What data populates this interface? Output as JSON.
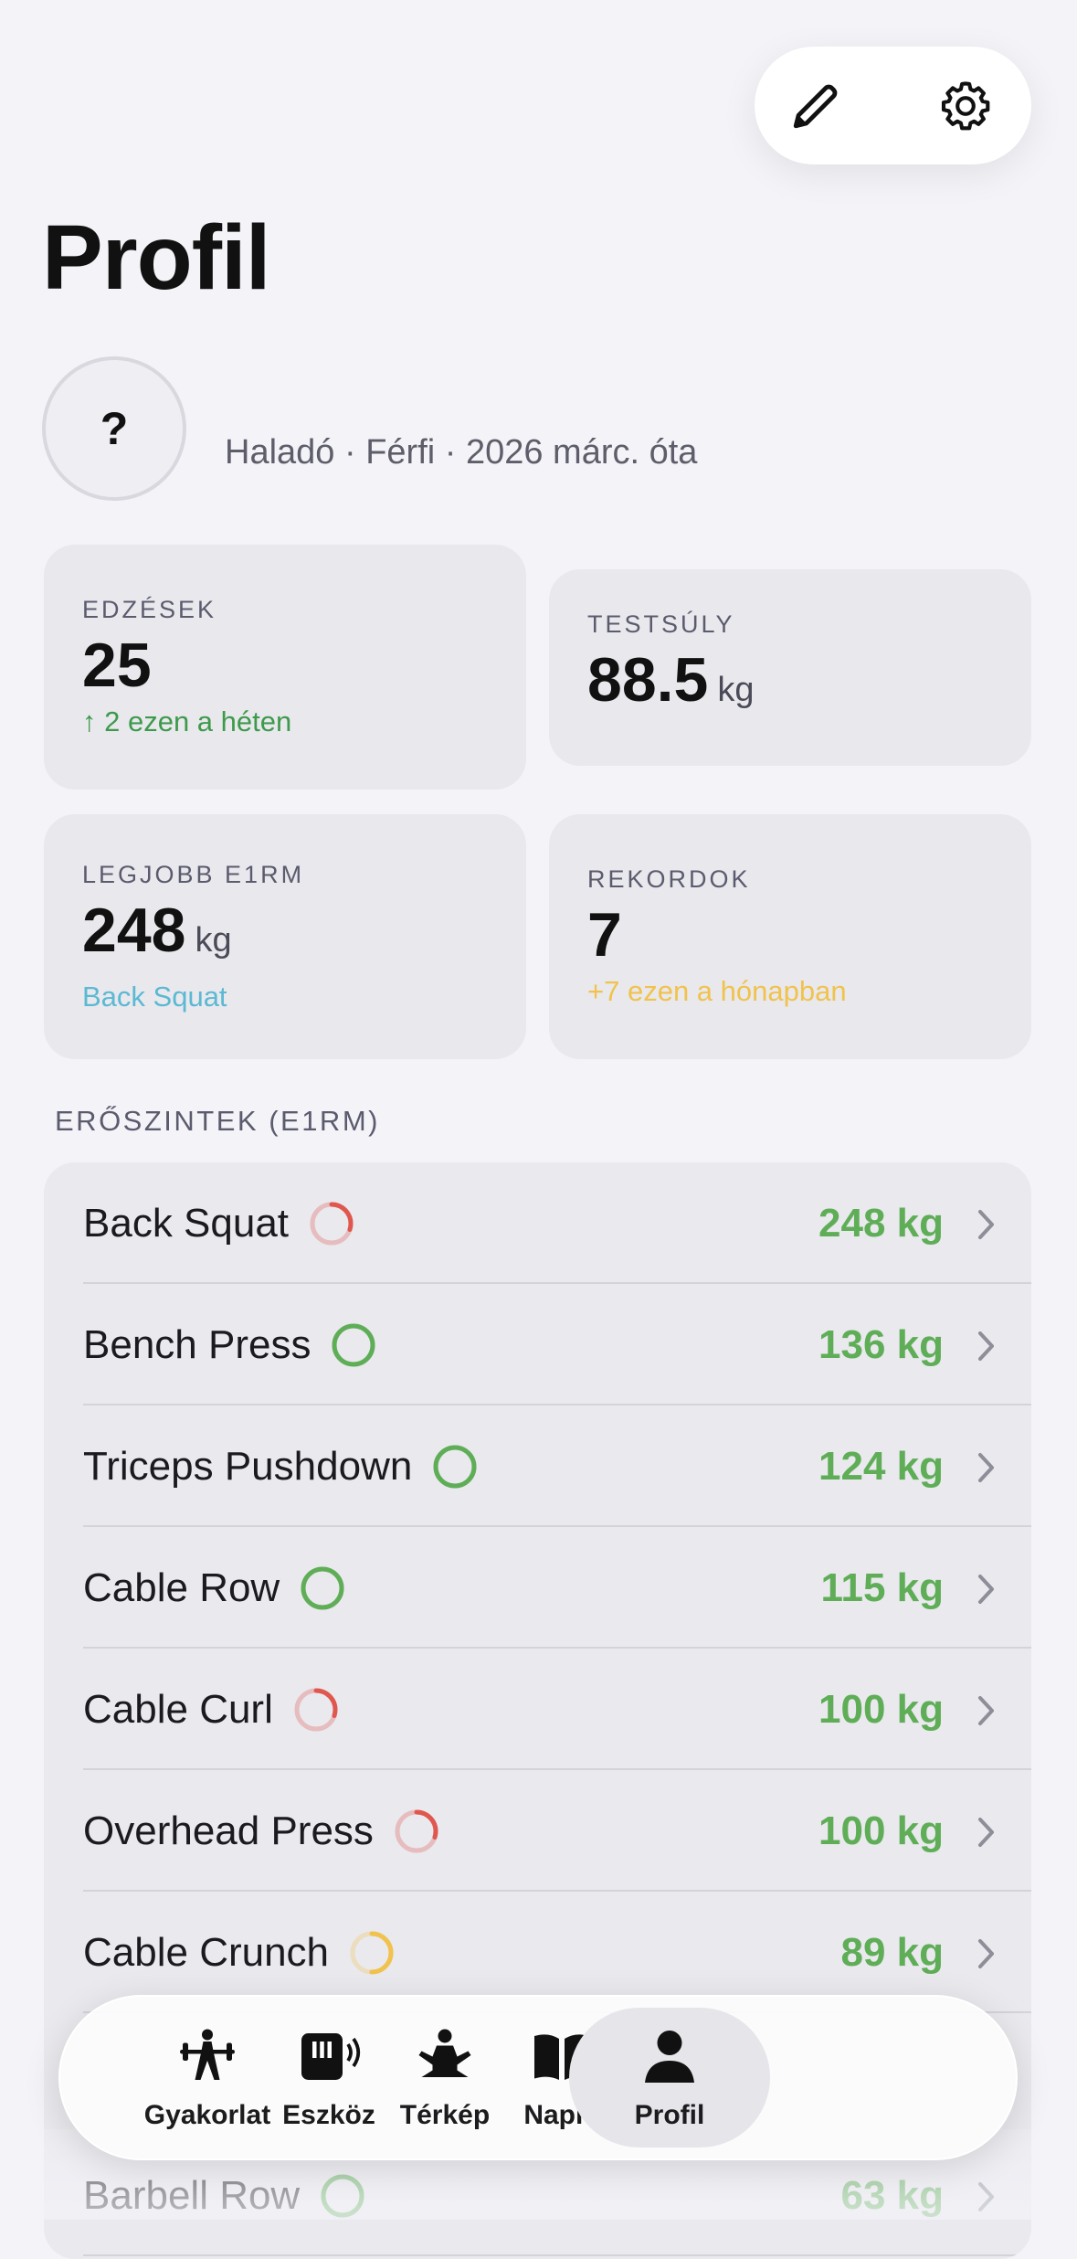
{
  "header": {
    "title": "Profil"
  },
  "profile": {
    "avatar": "?",
    "subtitle": "Haladó · Férfi · 2026 márc. óta"
  },
  "stats": [
    {
      "label": "EDZÉSEK",
      "value": "25",
      "note": "↑ 2 ezen a héten",
      "note_color": "#3e9a4b"
    },
    {
      "label": "TESTSÚLY",
      "value": "88.5",
      "unit": "kg"
    },
    {
      "label": "LEGJOBB E1RM",
      "value": "248",
      "unit": "kg",
      "note": "Back Squat",
      "note_color": "#5bb9d3"
    },
    {
      "label": "REKORDOK",
      "value": "7",
      "note": "+7 ezen a hónapban",
      "note_color": "#f1c24c"
    }
  ],
  "section": {
    "title": "ERŐSZINTEK (E1RM)",
    "rows": [
      {
        "name": "Back Squat",
        "value": "248 kg",
        "ring_color": "#e0574f",
        "ring_progress": 0.3
      },
      {
        "name": "Bench Press",
        "value": "136 kg",
        "ring_color": "#5fae57",
        "ring_progress": 1
      },
      {
        "name": "Triceps Pushdown",
        "value": "124 kg",
        "ring_color": "#5fae57",
        "ring_progress": 1
      },
      {
        "name": "Cable Row",
        "value": "115 kg",
        "ring_color": "#5fae57",
        "ring_progress": 1
      },
      {
        "name": "Cable Curl",
        "value": "100 kg",
        "ring_color": "#e0574f",
        "ring_progress": 0.3
      },
      {
        "name": "Overhead Press",
        "value": "100 kg",
        "ring_color": "#e0574f",
        "ring_progress": 0.3
      },
      {
        "name": "Cable Crunch",
        "value": "89 kg",
        "ring_color": "#f1c24c",
        "ring_progress": 0.5
      },
      {
        "name": "Barbell Row",
        "value": "63 kg",
        "ring_color": "#5fae57",
        "ring_progress": 1
      }
    ]
  },
  "nav": {
    "active": 4,
    "items": [
      {
        "label": "Gyakorlat"
      },
      {
        "label": "Eszköz"
      },
      {
        "label": "Térkép"
      },
      {
        "label": "Napló"
      },
      {
        "label": "Profil"
      }
    ]
  }
}
